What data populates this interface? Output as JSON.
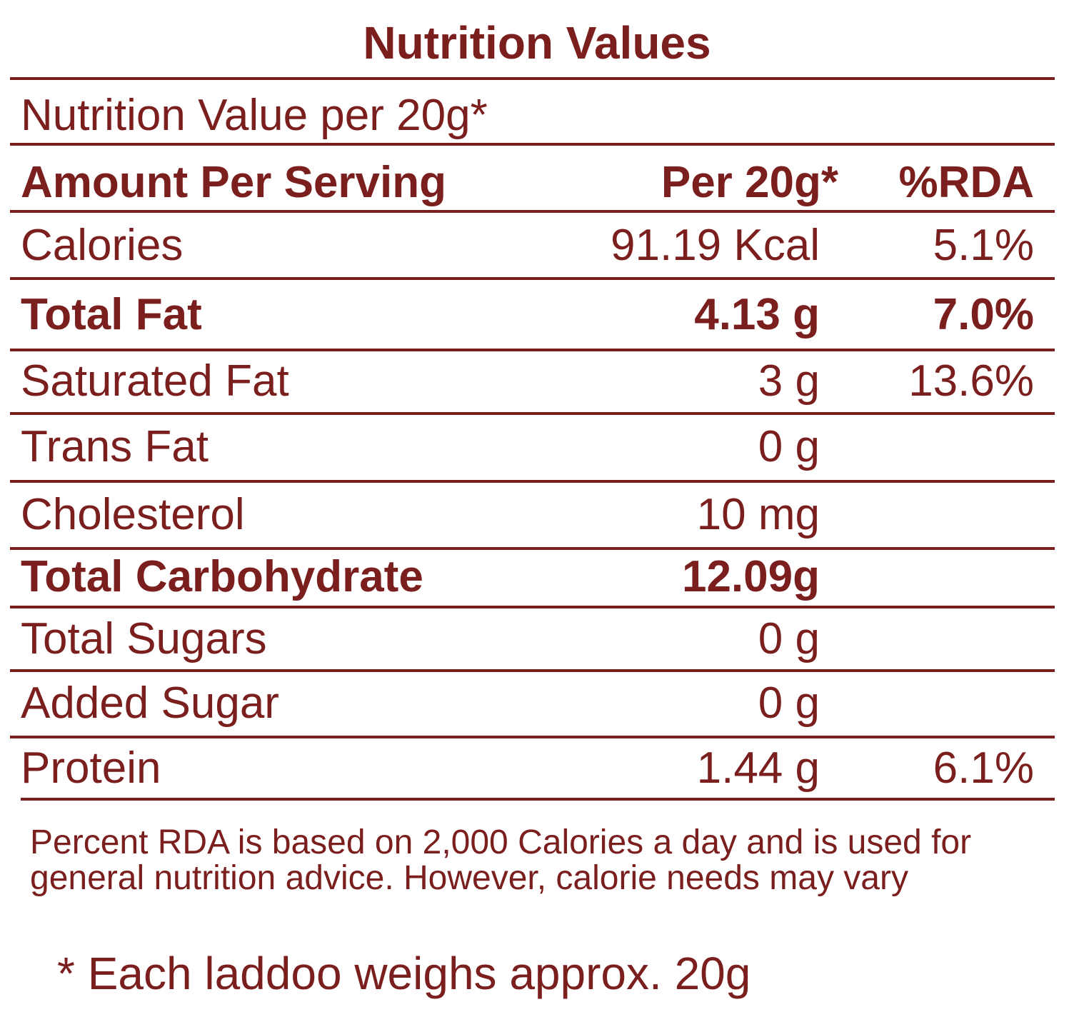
{
  "title": "Nutrition Values",
  "per_serving_note": "Nutrition Value per 20g*",
  "header": {
    "label": "Amount Per Serving",
    "value": "Per 20g*",
    "rda": "%RDA"
  },
  "rows": [
    {
      "label": "Calories",
      "value": "91.19 Kcal",
      "rda": "5.1%",
      "bold": false
    },
    {
      "label": "Total Fat",
      "value": "4.13 g",
      "rda": "7.0%",
      "bold": true
    },
    {
      "label": "Saturated Fat",
      "value": "3 g",
      "rda": "13.6%",
      "bold": false
    },
    {
      "label": "Trans Fat",
      "value": "0 g",
      "rda": "",
      "bold": false
    },
    {
      "label": "Cholesterol",
      "value": "10 mg",
      "rda": "",
      "bold": false
    },
    {
      "label": "Total Carbohydrate",
      "value": "12.09g",
      "rda": "",
      "bold": true
    },
    {
      "label": "Total Sugars",
      "value": "0 g",
      "rda": "",
      "bold": false
    },
    {
      "label": "Added Sugar",
      "value": "0 g",
      "rda": "",
      "bold": false
    },
    {
      "label": "Protein",
      "value": "1.44 g",
      "rda": "6.1%",
      "bold": false
    }
  ],
  "footnote": "Percent RDA is based on 2,000 Calories a day and is used for general nutrition advice. However, calorie needs may vary",
  "asterisk_note": "* Each laddoo weighs approx. 20g",
  "colors": {
    "primary": "#7a1e1e",
    "background": "#ffffff"
  }
}
